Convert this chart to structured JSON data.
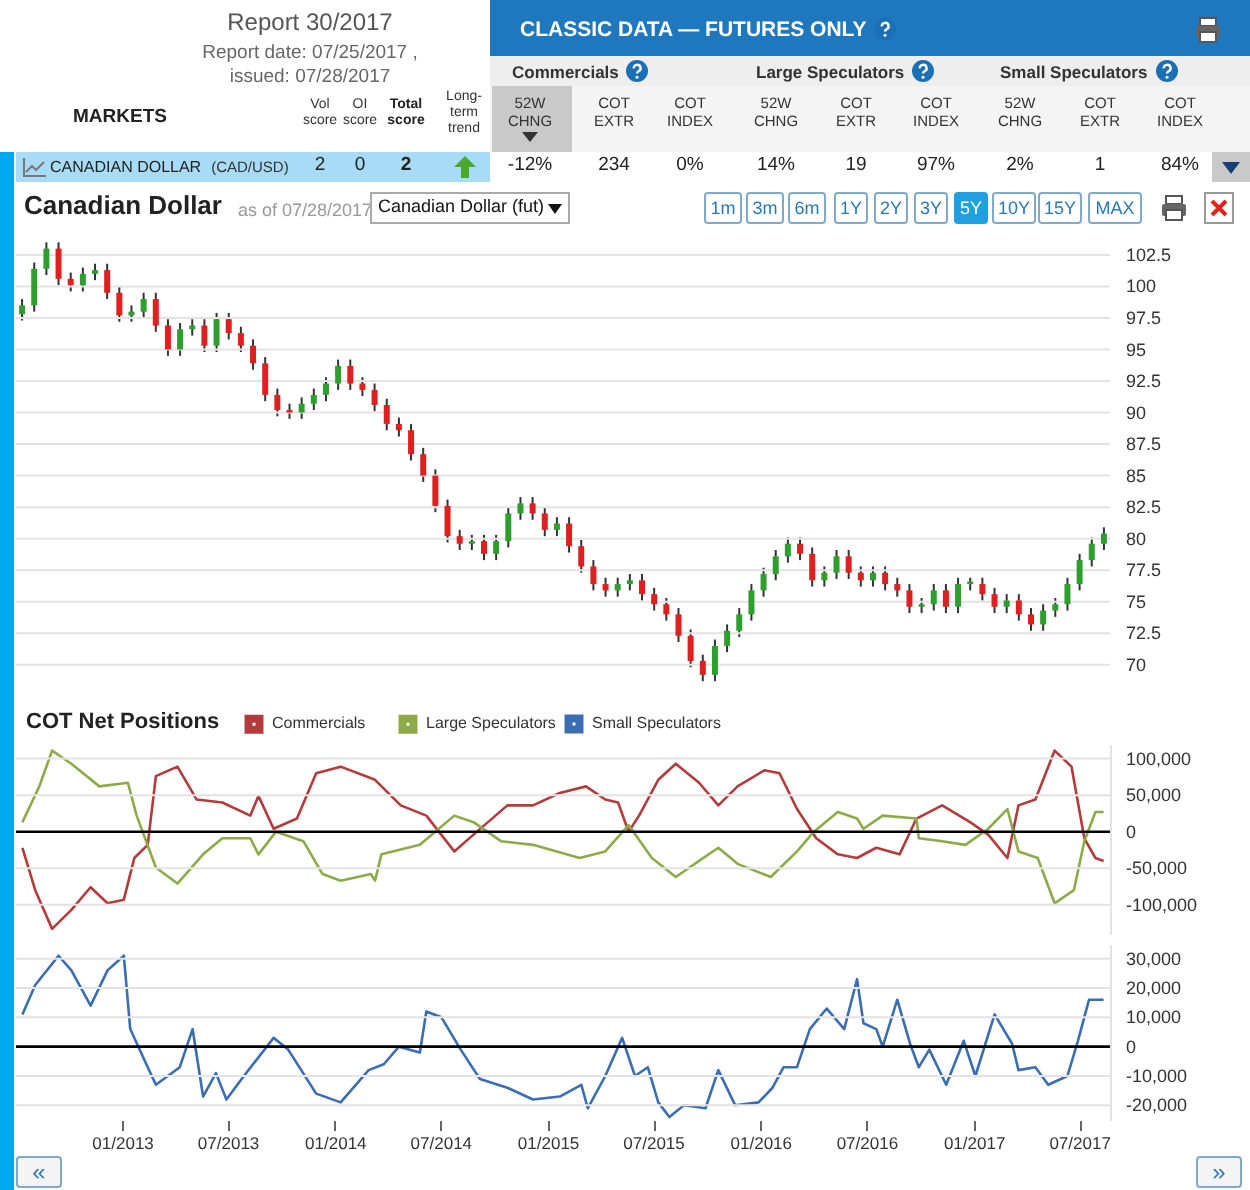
{
  "chart_data": [
    {
      "type": "other",
      "title": "Report 30/2017",
      "annotations": [
        "Report date: 07/25/2017 ,",
        "issued: 07/28/2017",
        "MARKETS",
        "Vol score",
        "OI score",
        "Total score",
        "Long-term trend",
        "CLASSIC DATA — FUTURES ONLY",
        "Commercials",
        "Large Speculators",
        "Small Speculators",
        "52W CHNG",
        "COT EXTR",
        "COT INDEX",
        "52W CHNG",
        "COT EXTR",
        "COT INDEX",
        "52W CHNG",
        "COT EXTR",
        "COT INDEX",
        "CANADIAN DOLLAR",
        "(CAD/USD)",
        "2",
        "0",
        "2",
        "-12%",
        "234",
        "0%",
        "14%",
        "19",
        "97%",
        "2%",
        "1",
        "84%"
      ]
    },
    {
      "type": "candlestick",
      "title": "Canadian Dollar",
      "subtitle": "as of 07/28/2017",
      "annotations": [
        "Canadian Dollar (fut)",
        "1m",
        "3m",
        "6m",
        "1Y",
        "2Y",
        "3Y",
        "5Y",
        "10Y",
        "15Y",
        "MAX"
      ],
      "categories": [
        null,
        null,
        null,
        null,
        null,
        null,
        null,
        null,
        null,
        null,
        null,
        null,
        null,
        null,
        null,
        null,
        null,
        null,
        null,
        null,
        null,
        null,
        null,
        null,
        null,
        null,
        null,
        null,
        null,
        null,
        null,
        null,
        null,
        null,
        null,
        null,
        null,
        null,
        null,
        null,
        null,
        null,
        null,
        null,
        null,
        null,
        null,
        null,
        null,
        null,
        null,
        null,
        null,
        null,
        null,
        null,
        null,
        null,
        null,
        null,
        null,
        null,
        null,
        null,
        null,
        null,
        null,
        null,
        null,
        null,
        null,
        null,
        null,
        null,
        null,
        null,
        null,
        null,
        null,
        null,
        null,
        null,
        null,
        null,
        null,
        null,
        null,
        null,
        null,
        null
      ],
      "ohlc": [
        [
          97.8,
          99,
          97.3,
          98.5
        ],
        [
          98.5,
          101.9,
          98,
          101.4
        ],
        [
          101.4,
          103.5,
          100.9,
          103
        ],
        [
          103,
          103.5,
          100.1,
          100.6
        ],
        [
          100.6,
          101.1,
          99.6,
          100.1
        ],
        [
          100.1,
          101.5,
          99.6,
          101
        ],
        [
          101,
          101.8,
          100.5,
          101.3
        ],
        [
          101.3,
          101.8,
          99,
          99.5
        ],
        [
          99.5,
          100,
          97.2,
          97.7
        ],
        [
          97.7,
          98.5,
          97.2,
          98
        ],
        [
          98,
          99.5,
          97.5,
          99
        ],
        [
          99,
          99.5,
          96.4,
          96.9
        ],
        [
          96.9,
          97.4,
          94.5,
          95
        ],
        [
          95,
          97.1,
          94.5,
          96.6
        ],
        [
          96.6,
          97.4,
          96.1,
          96.9
        ],
        [
          96.9,
          97.4,
          94.8,
          95.3
        ],
        [
          95.3,
          97.9,
          94.8,
          97.4
        ],
        [
          97.4,
          97.9,
          95.8,
          96.3
        ],
        [
          96.3,
          96.8,
          94.8,
          95.3
        ],
        [
          95.3,
          95.8,
          93.4,
          93.9
        ],
        [
          93.9,
          94.4,
          90.9,
          91.4
        ],
        [
          91.4,
          91.9,
          89.7,
          90.2
        ],
        [
          90.2,
          90.7,
          89.5,
          90
        ],
        [
          90,
          91.2,
          89.5,
          90.7
        ],
        [
          90.7,
          91.9,
          90.2,
          91.4
        ],
        [
          91.4,
          92.8,
          90.9,
          92.3
        ],
        [
          92.3,
          94.2,
          91.8,
          93.7
        ],
        [
          93.7,
          94.2,
          91.8,
          92.3
        ],
        [
          92.3,
          92.8,
          91.3,
          91.8
        ],
        [
          91.8,
          92.3,
          90.1,
          90.6
        ],
        [
          90.6,
          91.1,
          88.6,
          89.1
        ],
        [
          89.1,
          89.6,
          88.1,
          88.6
        ],
        [
          88.6,
          89.1,
          86.2,
          86.7
        ],
        [
          86.7,
          87.2,
          84.5,
          85
        ],
        [
          85,
          85.5,
          82.1,
          82.6
        ],
        [
          82.6,
          83.1,
          79.7,
          80.2
        ],
        [
          80.2,
          80.7,
          79.1,
          79.6
        ],
        [
          79.6,
          80.3,
          79.1,
          79.8
        ],
        [
          79.8,
          80.3,
          78.3,
          78.8
        ],
        [
          78.8,
          80.3,
          78.3,
          79.8
        ],
        [
          79.8,
          82.5,
          79.3,
          82
        ],
        [
          82,
          83.3,
          81.5,
          82.8
        ],
        [
          82.8,
          83.3,
          81.5,
          82
        ],
        [
          82,
          82.5,
          80.2,
          80.7
        ],
        [
          80.7,
          81.7,
          80.2,
          81.2
        ],
        [
          81.2,
          81.7,
          78.9,
          79.4
        ],
        [
          79.4,
          79.9,
          77.3,
          77.8
        ],
        [
          77.8,
          78.3,
          75.9,
          76.4
        ],
        [
          76.4,
          76.9,
          75.4,
          75.9
        ],
        [
          75.9,
          76.9,
          75.4,
          76.4
        ],
        [
          76.4,
          77.2,
          75.9,
          76.7
        ],
        [
          76.7,
          77.2,
          75.1,
          75.6
        ],
        [
          75.6,
          76.1,
          74.3,
          74.8
        ],
        [
          74.8,
          75.3,
          73.5,
          74
        ],
        [
          74,
          74.5,
          71.8,
          72.3
        ],
        [
          72.3,
          72.8,
          69.8,
          70.3
        ],
        [
          70.3,
          70.8,
          68.7,
          69.2
        ],
        [
          69.2,
          72,
          68.7,
          71.5
        ],
        [
          71.5,
          73.2,
          71,
          72.7
        ],
        [
          72.7,
          74.5,
          72.2,
          74
        ],
        [
          74,
          76.4,
          73.5,
          75.9
        ],
        [
          75.9,
          77.7,
          75.4,
          77.2
        ],
        [
          77.2,
          79.1,
          76.7,
          78.6
        ],
        [
          78.6,
          80.1,
          78.1,
          79.6
        ],
        [
          79.6,
          80.1,
          78.3,
          78.8
        ],
        [
          78.8,
          79.3,
          76.2,
          76.7
        ],
        [
          76.7,
          77.8,
          76.2,
          77.3
        ],
        [
          77.3,
          79.1,
          76.8,
          78.6
        ],
        [
          78.6,
          79.1,
          76.8,
          77.3
        ],
        [
          77.3,
          77.8,
          76.2,
          76.7
        ],
        [
          76.7,
          77.8,
          76.2,
          77.3
        ],
        [
          77.3,
          77.8,
          75.9,
          76.4
        ],
        [
          76.4,
          76.9,
          75.4,
          75.9
        ],
        [
          75.9,
          76.4,
          74.1,
          74.6
        ],
        [
          74.6,
          75.3,
          74.1,
          74.8
        ],
        [
          74.8,
          76.4,
          74.3,
          75.9
        ],
        [
          75.9,
          76.4,
          74.1,
          74.6
        ],
        [
          74.6,
          76.9,
          74.1,
          76.4
        ],
        [
          76.4,
          76.9,
          75.9,
          76.6
        ],
        [
          76.4,
          76.9,
          75.1,
          75.6
        ],
        [
          75.6,
          76.1,
          74.1,
          74.6
        ],
        [
          74.6,
          75.6,
          74.1,
          75.1
        ],
        [
          75.1,
          75.6,
          73.5,
          74
        ],
        [
          74,
          74.5,
          72.7,
          73.2
        ],
        [
          73.2,
          74.8,
          72.7,
          74.3
        ],
        [
          74.3,
          75.3,
          73.8,
          74.8
        ],
        [
          74.8,
          76.9,
          74.3,
          76.4
        ],
        [
          76.4,
          78.8,
          75.9,
          78.3
        ],
        [
          78.3,
          80.1,
          77.8,
          79.6
        ],
        [
          79.6,
          80.9,
          79.1,
          80.4
        ]
      ],
      "ylim": [
        68,
        104
      ],
      "yticks": [
        70,
        72.5,
        75,
        77.5,
        80,
        82.5,
        85,
        87.5,
        90,
        92.5,
        95,
        97.5,
        100,
        102.5
      ],
      "grid": "y",
      "tick_labels": "y"
    },
    {
      "type": "line",
      "title": "COT Net Positions",
      "legend": "top left",
      "grid": "y",
      "tick_labels": "y",
      "xlim": [
        "2012-07-03",
        "2017-08-23"
      ],
      "ylim": [
        -140000,
        120000
      ],
      "yticks": [
        {
          "value": -100000,
          "label": "-100,000"
        },
        {
          "value": -50000,
          "label": "-50,000"
        },
        {
          "value": 0,
          "label": "0"
        },
        {
          "value": 50000,
          "label": "50,000"
        },
        {
          "value": 100000,
          "label": "100,000"
        }
      ],
      "ref_lines": [
        {
          "axis": "y",
          "value": 0,
          "color": "#000000"
        }
      ],
      "series": [
        {
          "name": "Commercials",
          "color": "#b23b3b",
          "x": [
            "2012-07-14",
            "2012-08-05",
            "2012-09-03",
            "2012-10-06",
            "2012-11-08",
            "2012-12-07",
            "2013-01-04",
            "2013-01-22",
            "2013-02-14",
            "2013-02-28",
            "2013-04-06",
            "2013-05-09",
            "2013-06-22",
            "2013-08-09",
            "2013-08-23",
            "2013-09-18",
            "2013-10-28",
            "2013-11-30",
            "2014-01-11",
            "2014-03-11",
            "2014-04-24",
            "2014-06-07",
            "2014-07-25",
            "2014-08-27",
            "2014-10-24",
            "2014-12-07",
            "2015-01-22",
            "2015-03-08",
            "2015-04-10",
            "2015-05-02",
            "2015-05-20",
            "2015-06-07",
            "2015-07-10",
            "2015-08-09",
            "2015-09-18",
            "2015-10-21",
            "2015-11-23",
            "2016-01-08",
            "2016-02-03",
            "2016-03-04",
            "2016-04-06",
            "2016-05-13",
            "2016-06-15",
            "2016-07-18",
            "2016-08-27",
            "2016-09-25",
            "2016-11-08",
            "2016-12-26",
            "2017-01-26",
            "2017-02-28",
            "2017-03-19",
            "2017-04-17",
            "2017-05-20",
            "2017-06-18",
            "2017-07-10",
            "2017-07-29",
            "2017-08-12"
          ],
          "values": [
            -22000,
            -80000,
            -133000,
            -107000,
            -76000,
            -98000,
            -93000,
            -36000,
            -18000,
            76000,
            89000,
            44000,
            40000,
            22000,
            49000,
            4000,
            18000,
            80000,
            89000,
            71000,
            36000,
            22000,
            -27000,
            -4000,
            36000,
            36000,
            53000,
            62000,
            44000,
            40000,
            0,
            22000,
            71000,
            93000,
            67000,
            36000,
            62000,
            84000,
            80000,
            31000,
            -9000,
            -31000,
            -36000,
            -22000,
            -31000,
            18000,
            36000,
            13000,
            -4000,
            -36000,
            36000,
            44000,
            111000,
            89000,
            -9000,
            -36000,
            -40000
          ]
        },
        {
          "name": "Large Speculators",
          "color": "#8cab48",
          "x": [
            "2012-07-14",
            "2012-08-12",
            "2012-09-03",
            "2012-10-06",
            "2012-11-23",
            "2013-01-11",
            "2013-01-26",
            "2013-02-28",
            "2013-04-06",
            "2013-05-20",
            "2013-06-22",
            "2013-08-09",
            "2013-08-23",
            "2013-09-22",
            "2013-11-08",
            "2013-12-11",
            "2014-01-11",
            "2014-03-04",
            "2014-03-11",
            "2014-03-22",
            "2014-05-27",
            "2014-07-25",
            "2014-08-27",
            "2014-10-13",
            "2014-12-07",
            "2015-02-25",
            "2015-04-10",
            "2015-05-20",
            "2015-06-29",
            "2015-08-09",
            "2015-09-18",
            "2015-10-21",
            "2015-11-23",
            "2016-01-19",
            "2016-03-04",
            "2016-04-02",
            "2016-05-13",
            "2016-06-15",
            "2016-06-26",
            "2016-07-29",
            "2016-09-25",
            "2016-09-29",
            "2016-11-08",
            "2016-12-18",
            "2017-01-26",
            "2017-02-28",
            "2017-03-19",
            "2017-04-21",
            "2017-05-20",
            "2017-06-22",
            "2017-07-10",
            "2017-07-29",
            "2017-08-12"
          ],
          "values": [
            13000,
            62000,
            111000,
            93000,
            62000,
            67000,
            22000,
            -49000,
            -71000,
            -31000,
            -9000,
            -9000,
            -31000,
            0,
            -13000,
            -58000,
            -67000,
            -58000,
            -67000,
            -31000,
            -18000,
            22000,
            13000,
            -13000,
            -18000,
            -36000,
            -27000,
            9000,
            -36000,
            -62000,
            -40000,
            -22000,
            -44000,
            -62000,
            -27000,
            0,
            27000,
            18000,
            4000,
            22000,
            18000,
            -9000,
            -13000,
            -18000,
            4000,
            31000,
            -27000,
            -36000,
            -98000,
            -80000,
            -13000,
            27000,
            27000
          ]
        }
      ]
    },
    {
      "type": "line",
      "legend": "top",
      "grid": "y",
      "annotations": [
        "«",
        "»"
      ],
      "xlim": [
        "2012-07-03",
        "2017-08-23"
      ],
      "xticks": [
        {
          "value": "2013-01",
          "label": "01/2013"
        },
        {
          "value": "2013-07",
          "label": "07/2013"
        },
        {
          "value": "2014-01",
          "label": "01/2014"
        },
        {
          "value": "2014-07",
          "label": "07/2014"
        },
        {
          "value": "2015-01",
          "label": "01/2015"
        },
        {
          "value": "2015-07",
          "label": "07/2015"
        },
        {
          "value": "2016-01",
          "label": "01/2016"
        },
        {
          "value": "2016-07",
          "label": "07/2016"
        },
        {
          "value": "2017-01",
          "label": "01/2017"
        },
        {
          "value": "2017-07",
          "label": "07/2017"
        }
      ],
      "ylim": [
        -25000,
        35000
      ],
      "yticks": [
        {
          "value": -20000,
          "label": "-20,000"
        },
        {
          "value": -10000,
          "label": "-10,000"
        },
        {
          "value": 0,
          "label": "0"
        },
        {
          "value": 10000,
          "label": "10,000"
        },
        {
          "value": 20000,
          "label": "20,000"
        },
        {
          "value": 30000,
          "label": "30,000"
        }
      ],
      "ref_lines": [
        {
          "axis": "y",
          "value": 0,
          "color": "#000000"
        }
      ],
      "series": [
        {
          "name": "Small Speculators",
          "color": "#3b6db3",
          "x": [
            "2012-07-14",
            "2012-08-05",
            "2012-09-14",
            "2012-10-06",
            "2012-11-08",
            "2012-12-07",
            "2013-01-04",
            "2013-01-15",
            "2013-02-14",
            "2013-02-28",
            "2013-04-10",
            "2013-05-02",
            "2013-05-20",
            "2013-06-11",
            "2013-06-29",
            "2013-07-29",
            "2013-09-18",
            "2013-10-13",
            "2013-11-30",
            "2014-01-11",
            "2014-02-28",
            "2014-03-26",
            "2014-04-21",
            "2014-05-27",
            "2014-06-07",
            "2014-07-03",
            "2014-08-05",
            "2014-09-07",
            "2014-10-24",
            "2014-12-07",
            "2015-01-22",
            "2015-02-28",
            "2015-03-11",
            "2015-04-10",
            "2015-05-09",
            "2015-05-31",
            "2015-06-22",
            "2015-07-10",
            "2015-07-29",
            "2015-08-23",
            "2015-09-29",
            "2015-10-21",
            "2015-11-19",
            "2015-12-29",
            "2016-01-22",
            "2016-02-10",
            "2016-03-04",
            "2016-03-26",
            "2016-04-24",
            "2016-05-24",
            "2016-06-15",
            "2016-06-26",
            "2016-07-18",
            "2016-07-29",
            "2016-08-23",
            "2016-09-14",
            "2016-09-29",
            "2016-10-17",
            "2016-11-15",
            "2016-12-15",
            "2017-01-04",
            "2017-02-06",
            "2017-03-08",
            "2017-03-19",
            "2017-04-17",
            "2017-05-09",
            "2017-06-11",
            "2017-06-29",
            "2017-07-18",
            "2017-08-12"
          ],
          "values": [
            11000,
            21000,
            31000,
            26000,
            14000,
            26000,
            31000,
            6000,
            -7000,
            -13000,
            -7000,
            6000,
            -17000,
            -9000,
            -18000,
            -10000,
            3000,
            -1000,
            -16000,
            -19000,
            -8000,
            -6000,
            0,
            -2000,
            12000,
            10000,
            -1000,
            -11000,
            -14000,
            -18000,
            -17000,
            -13000,
            -21000,
            -10000,
            3000,
            -10000,
            -7000,
            -19000,
            -24000,
            -20000,
            -21000,
            -8000,
            -20000,
            -19000,
            -14000,
            -7000,
            -7000,
            6000,
            13000,
            6000,
            23000,
            8000,
            6000,
            0,
            16000,
            1000,
            -7000,
            -1000,
            -13000,
            2000,
            -10000,
            11000,
            1000,
            -8000,
            -7000,
            -13000,
            -10000,
            2000,
            16000,
            16000
          ]
        }
      ]
    }
  ]
}
